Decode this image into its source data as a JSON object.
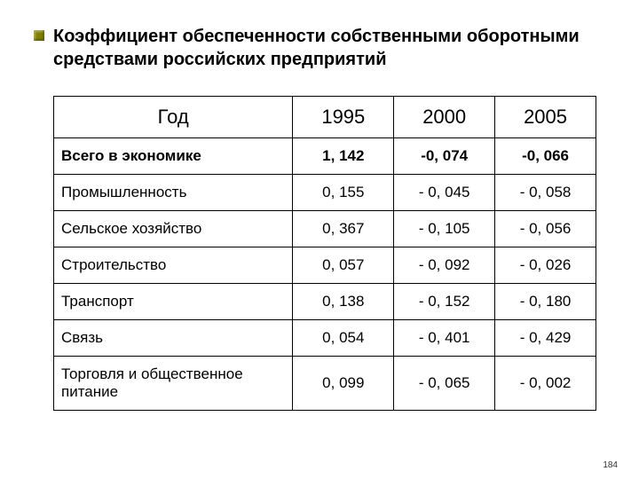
{
  "title": "Коэффициент обеспеченности собственными оборотными средствами российских предприятий",
  "table": {
    "header": {
      "year": "Год",
      "y1995": "1995",
      "y2000": "2000",
      "y2005": "2005"
    },
    "rows": [
      {
        "label": "Всего в экономике",
        "bold": "1",
        "c1": "1, 142",
        "c2": "-0, 074",
        "c3": "-0, 066"
      },
      {
        "label": "Промышленность",
        "bold": "0",
        "c1": "0, 155",
        "c2": "- 0, 045",
        "c3": "- 0, 058"
      },
      {
        "label": "Сельское хозяйство",
        "bold": "0",
        "c1": "0, 367",
        "c2": "- 0, 105",
        "c3": "- 0, 056"
      },
      {
        "label": "Строительство",
        "bold": "0",
        "c1": "0, 057",
        "c2": "- 0, 092",
        "c3": "- 0, 026"
      },
      {
        "label": "Транспорт",
        "bold": "0",
        "c1": "0, 138",
        "c2": "- 0, 152",
        "c3": "- 0, 180"
      },
      {
        "label": "Связь",
        "bold": "0",
        "c1": "0, 054",
        "c2": "- 0, 401",
        "c3": "- 0, 429"
      },
      {
        "label": "Торговля и общественное питание",
        "bold": "0",
        "c1": "0, 099",
        "c2": "- 0, 065",
        "c3": "- 0, 002"
      }
    ]
  },
  "pagenum": "184",
  "colors": {
    "bullet": "#808000",
    "border": "#000000",
    "text": "#000000",
    "background": "#ffffff"
  }
}
